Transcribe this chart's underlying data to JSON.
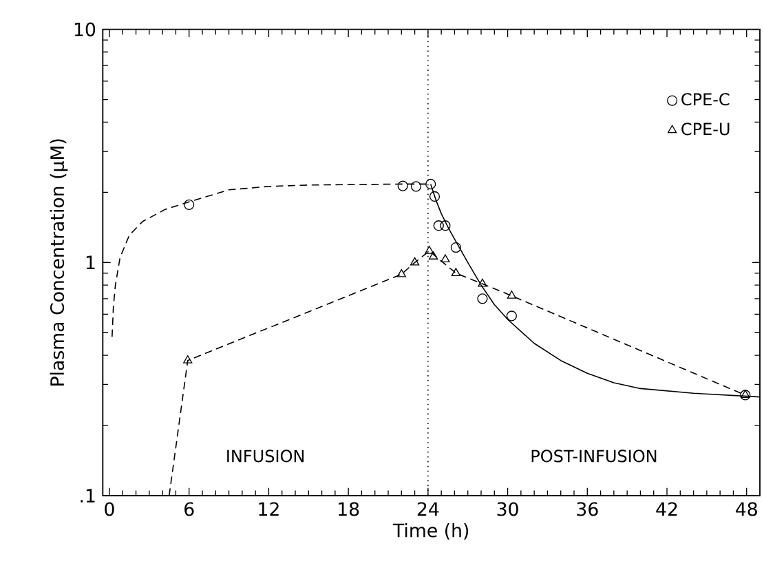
{
  "chart_data": {
    "type": "scatter",
    "xlabel": "Time (h)",
    "ylabel": "Plasma Concentration (μM)",
    "xlim": [
      -0.5,
      49
    ],
    "xticks": [
      0,
      6,
      12,
      18,
      24,
      30,
      36,
      42,
      48
    ],
    "ylim": [
      0.1,
      10
    ],
    "yticks": [
      {
        "value": 0.1,
        "label": ".1"
      },
      1,
      10
    ],
    "log": "y",
    "legend": "top right",
    "grid": false,
    "ref_lines": [
      {
        "axis": "x",
        "value": 24,
        "line_style": "dotted"
      }
    ],
    "annotations": [
      "INFUSION",
      "POST-INFUSION"
    ],
    "series": [
      {
        "name": "CPE-C",
        "marker": "circle",
        "color": "#000000",
        "x": [
          6,
          22.1,
          23.1,
          24.2,
          24.5,
          24.8,
          25.3,
          26.1,
          28.1,
          30.3,
          47.9
        ],
        "values": [
          1.77,
          2.13,
          2.12,
          2.17,
          1.92,
          1.44,
          1.44,
          1.16,
          0.7,
          0.59,
          0.27
        ]
      },
      {
        "name": "CPE-U",
        "marker": "triangle",
        "color": "#000000",
        "x": [
          5.9,
          22.0,
          23.0,
          24.1,
          24.4,
          25.3,
          26.1,
          28.1,
          30.3,
          47.9
        ],
        "values": [
          0.38,
          0.89,
          1.0,
          1.12,
          1.06,
          1.03,
          0.9,
          0.81,
          0.72,
          0.27
        ]
      },
      {
        "type": "line",
        "line_style": "dashed",
        "marker": "none",
        "color": "#000000",
        "x": [
          0.2,
          0.3,
          0.45,
          0.8,
          1.5,
          2.5,
          4.2,
          6,
          9,
          12,
          15,
          22,
          24.2
        ],
        "values": [
          0.48,
          0.65,
          0.8,
          1.05,
          1.31,
          1.5,
          1.69,
          1.82,
          2.05,
          2.12,
          2.15,
          2.17,
          2.17
        ]
      },
      {
        "type": "line",
        "line_style": "solid",
        "marker": "none",
        "color": "#000000",
        "x": [
          24.2,
          24.6,
          25,
          25.5,
          26,
          27,
          28,
          29,
          30,
          32,
          34,
          36,
          38,
          40,
          44,
          49
        ],
        "values": [
          2.17,
          1.85,
          1.62,
          1.42,
          1.26,
          1.0,
          0.8,
          0.66,
          0.57,
          0.45,
          0.38,
          0.335,
          0.305,
          0.288,
          0.275,
          0.265
        ]
      },
      {
        "type": "line",
        "line_style": "dashed",
        "marker": "none",
        "color": "#000000",
        "x": [
          4.5,
          5.9,
          22.0,
          23.0,
          24.1,
          26.1,
          28.1,
          30.3,
          47.9
        ],
        "values": [
          0.1,
          0.38,
          0.89,
          1.0,
          1.12,
          0.9,
          0.81,
          0.72,
          0.27
        ]
      }
    ]
  }
}
